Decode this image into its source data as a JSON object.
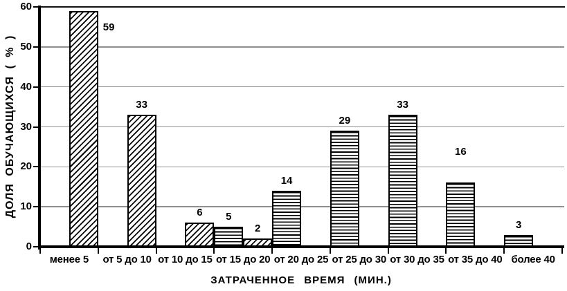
{
  "chart_data": {
    "type": "bar",
    "title": "",
    "xlabel": "ЗАТРАЧЕННОЕ ВРЕМЯ (МИН.)",
    "ylabel": "ДОЛЯ ОБУЧАЮЩИХСЯ ( % )",
    "ylim": [
      0,
      60
    ],
    "yticks": [
      0,
      10,
      20,
      30,
      40,
      50,
      60
    ],
    "grid": "horizontal gridlines at 10-50 in gray, solid black line at 60, no legend, no right border",
    "categories": [
      "менее 5",
      "от 5 до 10",
      "от 10 до 15",
      "от 15 до 20",
      "от 20 до 25",
      "от 25 до 30",
      "от 30 до 35",
      "от 35 до 40",
      "более 40"
    ],
    "series": [
      {
        "name": "diagonal-hatch-distribution",
        "pattern": "diagonal-hatch",
        "slot": "right-half",
        "points": [
          {
            "category_index": 0,
            "value": 59,
            "label": "59",
            "label_placement": "right-of-bar-top"
          },
          {
            "category_index": 1,
            "value": 33,
            "label": "33",
            "label_placement": "above"
          },
          {
            "category_index": 2,
            "value": 6,
            "label": "6",
            "label_placement": "above"
          },
          {
            "category_index": 3,
            "value": 2,
            "label": "2",
            "label_placement": "above"
          }
        ]
      },
      {
        "name": "horizontal-lines-distribution",
        "pattern": "horizontal-lines",
        "slot": "left-half",
        "points": [
          {
            "category_index": 3,
            "value": 5,
            "label": "5",
            "label_placement": "above"
          },
          {
            "category_index": 4,
            "value": 14,
            "label": "14",
            "label_placement": "above"
          },
          {
            "category_index": 5,
            "value": 29,
            "label": "29",
            "label_placement": "above"
          },
          {
            "category_index": 6,
            "value": 33,
            "label": "33",
            "label_placement": "above"
          },
          {
            "category_index": 7,
            "value": 16,
            "label": "16",
            "label_placement": "above-high"
          },
          {
            "category_index": 8,
            "value": 3,
            "label": "3",
            "label_placement": "above"
          }
        ]
      }
    ],
    "colors": {
      "background": "#ffffff",
      "axis": "#000000",
      "gridline": "#8f8f8f",
      "top_line": "#111111",
      "bar_fill": "#ffffff",
      "bar_stroke": "#000000",
      "text": "#000000"
    }
  }
}
